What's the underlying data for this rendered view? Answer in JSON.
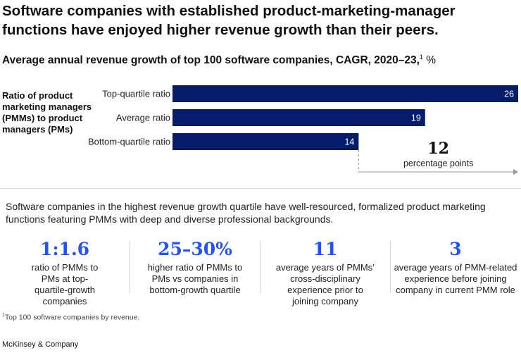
{
  "header": {
    "title": "Software companies with established product-marketing-manager functions have enjoyed higher revenue growth than their peers."
  },
  "chart_data": {
    "type": "bar",
    "orientation": "horizontal",
    "title": "Average annual revenue growth of top 100 software companies, CAGR, 2020–23,",
    "title_footnote_marker": "1",
    "unit": "%",
    "row_group_label": "Ratio of product marketing managers (PMMs) to product managers (PMs)",
    "categories": [
      "Top-quartile ratio",
      "Average ratio",
      "Bottom-quartile ratio"
    ],
    "values": [
      26,
      19,
      14
    ],
    "xlim": [
      0,
      26
    ],
    "bar_color": "#051c6b",
    "annotation": {
      "value": "12",
      "label": "percentage points"
    },
    "grid": false,
    "legend": "none"
  },
  "description": "Software companies in the highest revenue growth quartile have well-resourced, formalized product marketing functions featuring PMMs with deep and diverse professional backgrounds.",
  "stats": [
    {
      "value": "1:1.6",
      "text": "ratio of PMMs to PMs at top-quartile-growth companies"
    },
    {
      "value": "25–30%",
      "text": "higher ratio of PMMs to PMs vs companies in bottom-growth quartile"
    },
    {
      "value": "11",
      "text": "average years of PMMs’ cross-disciplinary experience prior to joining company"
    },
    {
      "value": "3",
      "text": "average years of PMM-related experience before joining company in current PMM role"
    }
  ],
  "footnote": {
    "marker": "1",
    "text": "Top 100 software companies by revenue."
  },
  "brand": "McKinsey & Company",
  "colors": {
    "accent": "#2251ff",
    "bar": "#051c6b"
  }
}
